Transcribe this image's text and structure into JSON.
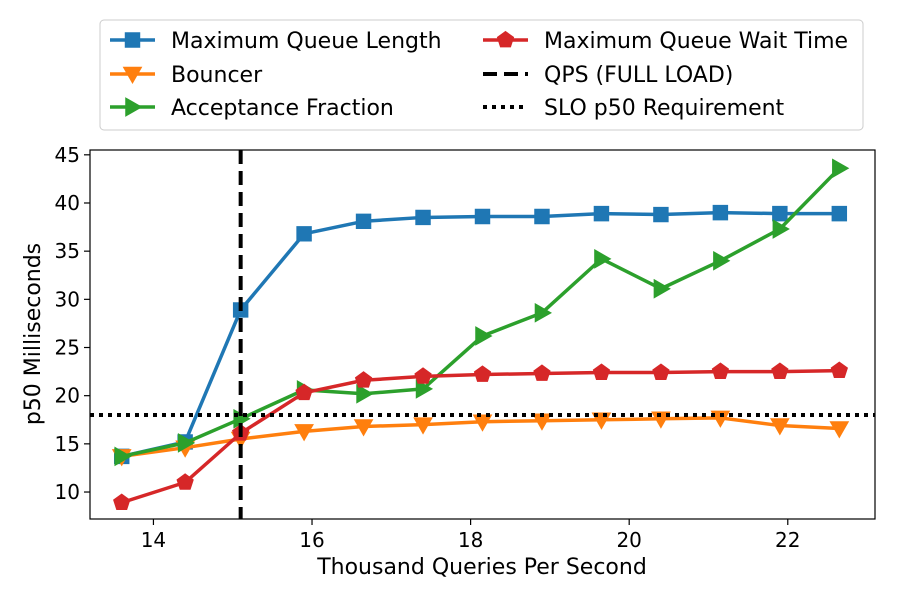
{
  "chart_data": {
    "type": "line",
    "title": "",
    "xlabel": "Thousand Queries Per Second",
    "ylabel": "p50 Milliseconds",
    "xlim": [
      13.2,
      23.1
    ],
    "ylim": [
      7.2,
      45.5
    ],
    "x_ticks": [
      14,
      16,
      18,
      20,
      22
    ],
    "y_ticks": [
      10,
      15,
      20,
      25,
      30,
      35,
      40,
      45
    ],
    "grid": false,
    "legend_position": "top",
    "x": [
      13.6,
      14.4,
      15.1,
      15.9,
      16.65,
      17.4,
      18.15,
      18.9,
      19.65,
      20.4,
      21.15,
      21.9,
      22.65
    ],
    "series": [
      {
        "name": "Maximum Queue Length",
        "color": "#1f77b4",
        "marker": "square",
        "values": [
          13.7,
          15.2,
          28.9,
          36.8,
          38.1,
          38.5,
          38.6,
          38.6,
          38.9,
          38.8,
          39.0,
          38.9,
          38.9
        ]
      },
      {
        "name": "Bouncer",
        "color": "#ff7f0e",
        "marker": "triangle-down",
        "values": [
          13.7,
          14.6,
          15.5,
          16.3,
          16.8,
          17.0,
          17.3,
          17.4,
          17.5,
          17.6,
          17.7,
          16.9,
          16.6
        ]
      },
      {
        "name": "Acceptance Fraction",
        "color": "#2ca02c",
        "marker": "triangle-right",
        "values": [
          13.7,
          15.1,
          17.6,
          20.6,
          20.2,
          20.7,
          26.2,
          28.6,
          34.2,
          31.1,
          34.0,
          37.3,
          43.6
        ]
      },
      {
        "name": "Maximum Queue Wait Time",
        "color": "#d62728",
        "marker": "pentagon",
        "values": [
          8.9,
          11.0,
          16.1,
          20.3,
          21.6,
          22.0,
          22.2,
          22.3,
          22.4,
          22.4,
          22.5,
          22.5,
          22.6
        ]
      }
    ],
    "reference_lines": [
      {
        "name": "QPS (FULL LOAD)",
        "orientation": "vertical",
        "value": 15.1,
        "style": "dashed",
        "color": "#000000"
      },
      {
        "name": "SLO p50 Requirement",
        "orientation": "horizontal",
        "value": 18.0,
        "style": "dotted",
        "color": "#000000"
      }
    ]
  }
}
